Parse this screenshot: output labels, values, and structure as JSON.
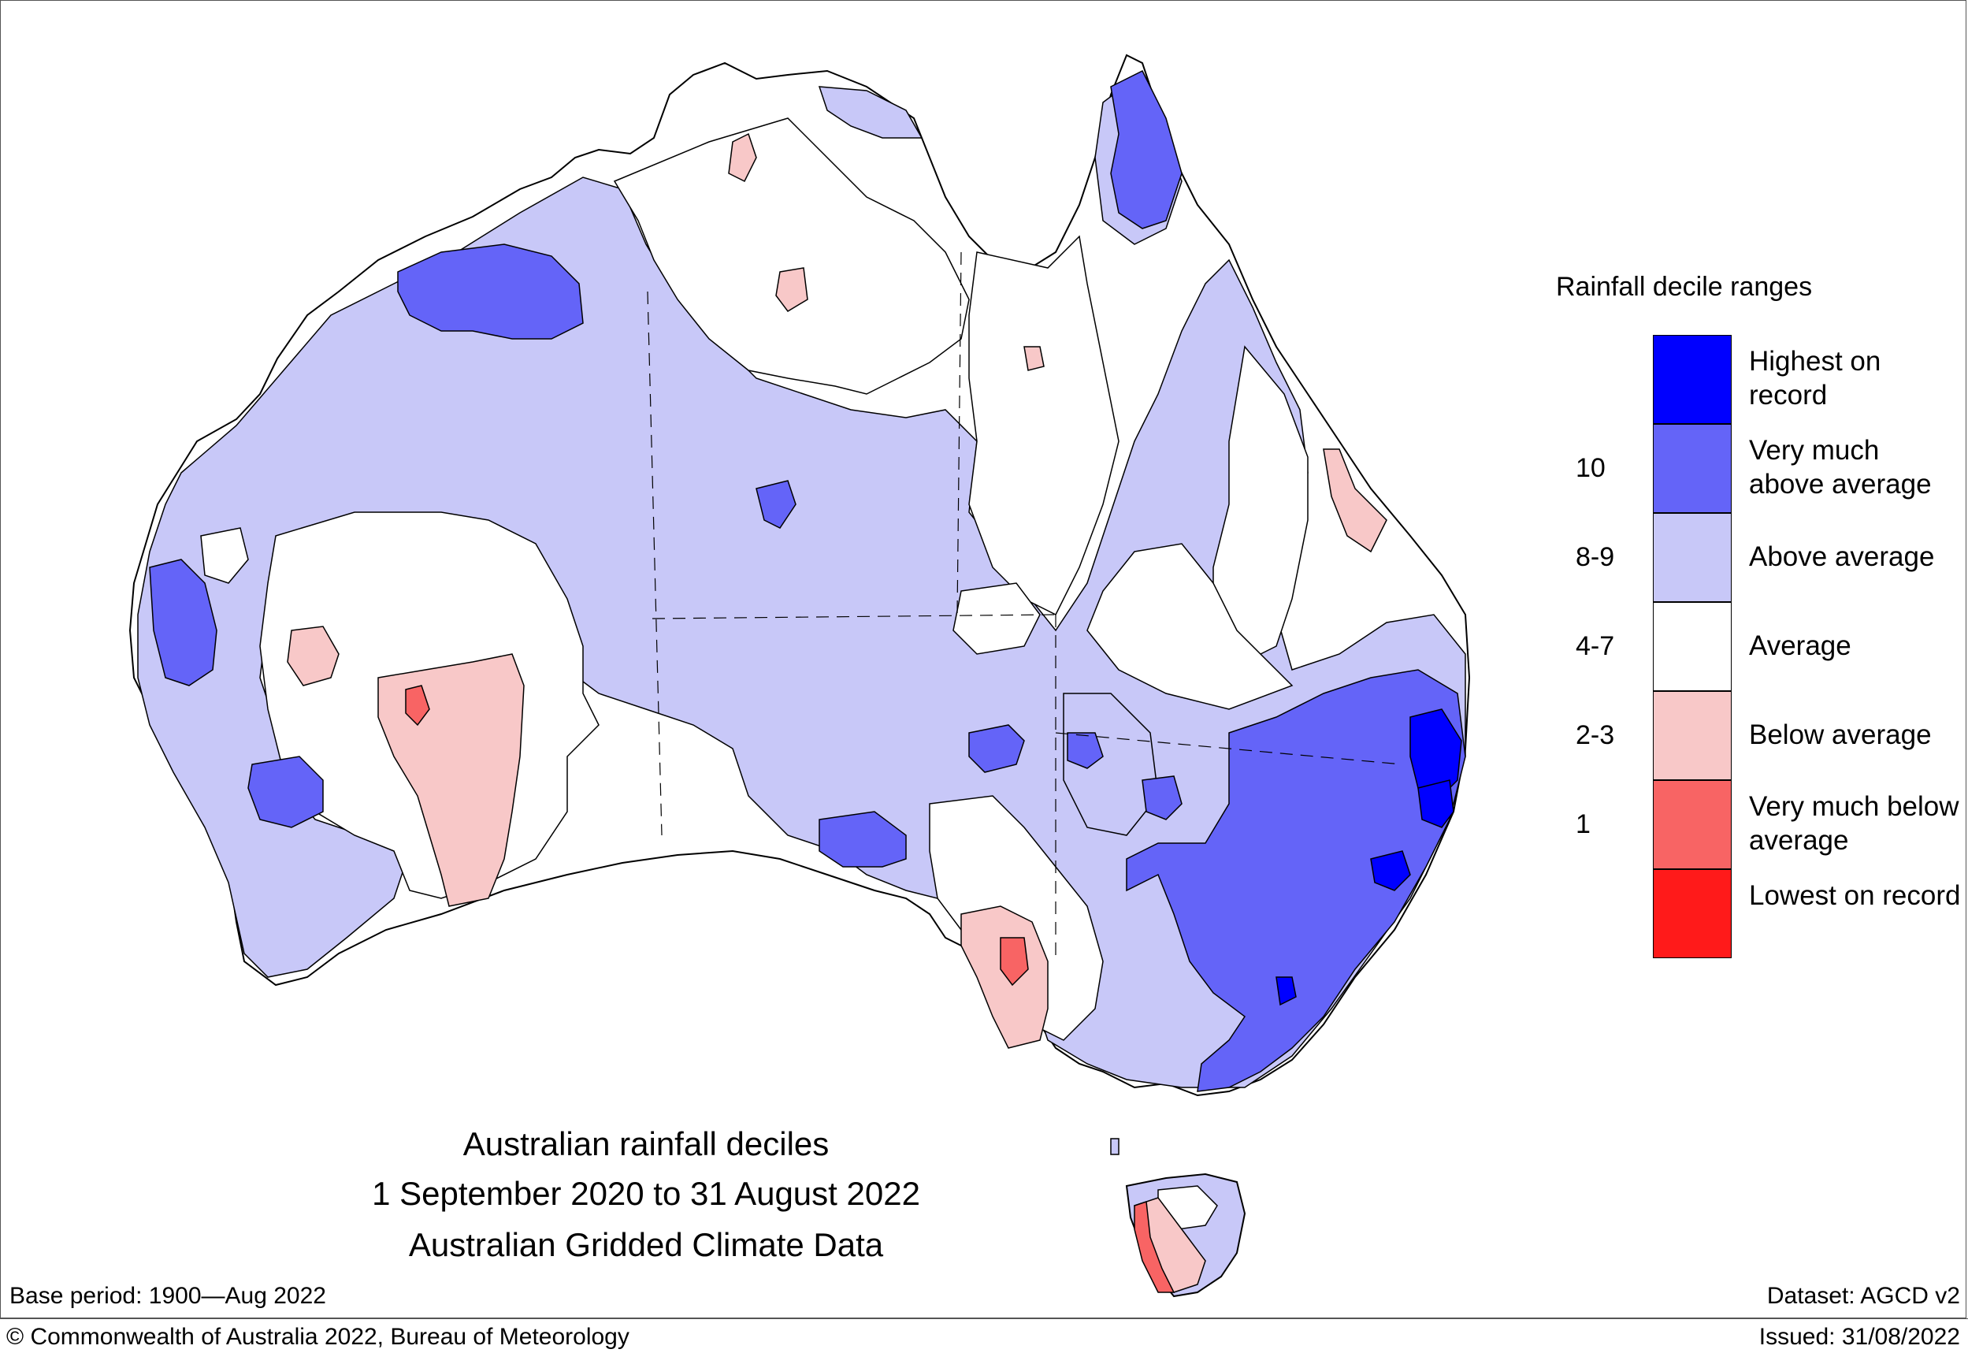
{
  "title": {
    "line1": "Australian rainfall deciles",
    "line2": "1 September 2020 to 31 August 2022",
    "line3": "Australian Gridded Climate Data"
  },
  "footer": {
    "base_period": "Base period: 1900—Aug 2022",
    "dataset": "Dataset: AGCD v2",
    "copyright": "© Commonwealth of Australia 2022, Bureau of Meteorology",
    "issued": "Issued: 31/08/2022"
  },
  "legend": {
    "title": "Rainfall decile ranges",
    "categories": [
      {
        "label": "Highest on record",
        "color": "#0000ff",
        "decile": ""
      },
      {
        "label": "Very much above average",
        "color": "#6464f8",
        "decile": "10"
      },
      {
        "label": "Above average",
        "color": "#c8c8f8",
        "decile": "8-9"
      },
      {
        "label": "Average",
        "color": "#ffffff",
        "decile": "4-7"
      },
      {
        "label": "Below average",
        "color": "#f8c8c8",
        "decile": "2-3"
      },
      {
        "label": "Very much below average",
        "color": "#f86464",
        "decile": "1"
      },
      {
        "label": "Lowest on record",
        "color": "#ff1a1a",
        "decile": ""
      }
    ]
  }
}
